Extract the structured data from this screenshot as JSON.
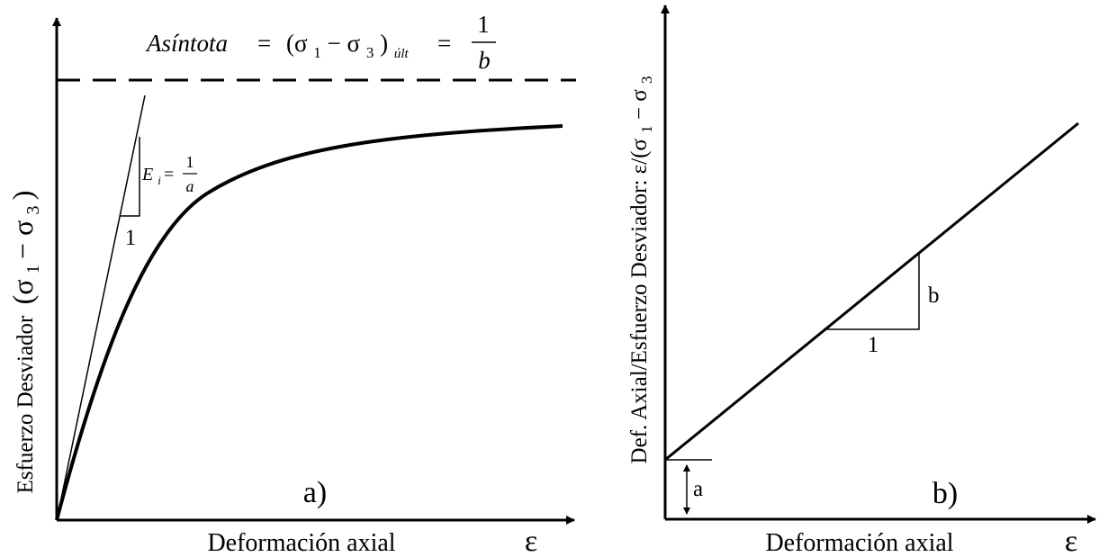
{
  "left_panel": {
    "asymptote_label": "Asíntota",
    "asymptote_equals": "=",
    "asymptote_expr_open": "(σ",
    "asymptote_sub1": "1",
    "asymptote_minus": " − σ",
    "asymptote_sub3": "3",
    "asymptote_expr_close": ")",
    "asymptote_sub_ult": "últ",
    "asymptote_equals2": "=",
    "asymptote_num": "1",
    "asymptote_den": "b",
    "ei_label": "E",
    "ei_sub": "i",
    "ei_equals": "=",
    "ei_num": "1",
    "ei_den": "a",
    "slope_run": "1",
    "panel_tag": "a)",
    "ylabel_text": "Esfuerzo Desviador",
    "ylabel_expr_open": "(σ",
    "ylabel_sub1": "1",
    "ylabel_minus": " − σ",
    "ylabel_sub3": "3",
    "ylabel_expr_close": ")",
    "xlabel": "Deformación axial",
    "x_symbol": "ε"
  },
  "right_panel": {
    "slope_rise": "b",
    "slope_run": "1",
    "intercept": "a",
    "panel_tag": "b)",
    "ylabel_text": "Def. Axial/Esfuerzo Desviador: ε/(σ",
    "ylabel_sub1": "1",
    "ylabel_minus": " − σ",
    "ylabel_sub3": "3",
    "xlabel": "Deformación axial",
    "x_symbol": "ε"
  },
  "colors": {
    "line": "#000000",
    "background": "#ffffff"
  }
}
